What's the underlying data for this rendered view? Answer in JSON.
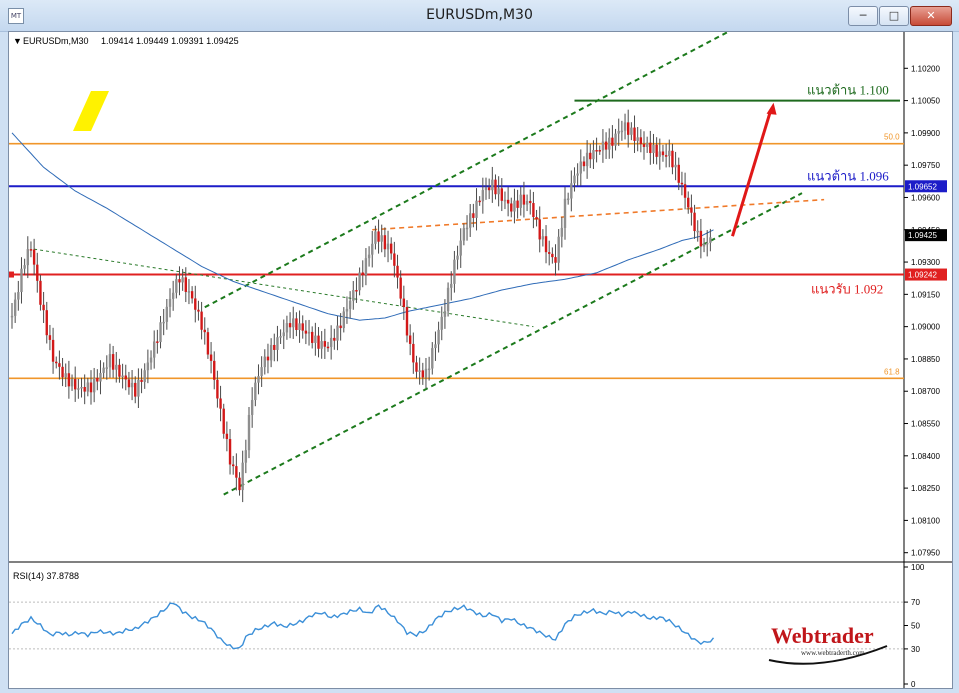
{
  "window": {
    "title": "EURUSDm,M30",
    "app_icon": "chart-window-icon",
    "buttons": {
      "minimize_icon": "minimize-icon",
      "maximize_icon": "maximize-icon",
      "close_icon": "close-icon"
    }
  },
  "header": {
    "symbol": "EURUSDm,M30",
    "ohlc": "1.09414 1.09449 1.09391 1.09425"
  },
  "rsi_header": {
    "label": "RSI(14) 37.8788"
  },
  "watermark": {
    "brand": "Webtrader",
    "url": "www.webtraderth.com"
  },
  "chart_data": [
    {
      "type": "candlestick",
      "title": "EURUSDm,M30",
      "ylim": [
        1.0793,
        1.1035
      ],
      "y_ticks": [
        "1.10200",
        "1.10050",
        "1.09900",
        "1.09750",
        "1.09600",
        "1.09450",
        "1.09300",
        "1.09150",
        "1.09000",
        "1.08850",
        "1.08700",
        "1.08550",
        "1.08400",
        "1.08250",
        "1.08100",
        "1.07950"
      ],
      "current_price": "1.09425",
      "close_path": [
        [
          0,
          1.0905
        ],
        [
          4,
          1.0931
        ],
        [
          6,
          1.0937
        ],
        [
          9,
          1.0912
        ],
        [
          13,
          1.0885
        ],
        [
          17,
          1.0876
        ],
        [
          21,
          1.0871
        ],
        [
          25,
          1.0872
        ],
        [
          28,
          1.0878
        ],
        [
          31,
          1.0885
        ],
        [
          33,
          1.088
        ],
        [
          36,
          1.0875
        ],
        [
          39,
          1.087
        ],
        [
          42,
          1.0879
        ],
        [
          45,
          1.0891
        ],
        [
          48,
          1.0904
        ],
        [
          51,
          1.0917
        ],
        [
          53,
          1.0923
        ],
        [
          55,
          1.0918
        ],
        [
          57,
          1.0913
        ],
        [
          60,
          1.0901
        ],
        [
          63,
          1.0883
        ],
        [
          66,
          1.086
        ],
        [
          69,
          1.0838
        ],
        [
          71,
          1.083
        ],
        [
          72,
          1.0825
        ],
        [
          74,
          1.0845
        ],
        [
          76,
          1.0868
        ],
        [
          79,
          1.0882
        ],
        [
          82,
          1.0889
        ],
        [
          85,
          1.0896
        ],
        [
          88,
          1.0902
        ],
        [
          91,
          1.09
        ],
        [
          94,
          1.0896
        ],
        [
          97,
          1.0892
        ],
        [
          100,
          1.0891
        ],
        [
          103,
          1.0898
        ],
        [
          106,
          1.0909
        ],
        [
          109,
          1.0919
        ],
        [
          112,
          1.093
        ],
        [
          115,
          1.0943
        ],
        [
          117,
          1.094
        ],
        [
          120,
          1.0935
        ],
        [
          123,
          1.0915
        ],
        [
          126,
          1.089
        ],
        [
          128,
          1.0879
        ],
        [
          131,
          1.0878
        ],
        [
          134,
          1.0893
        ],
        [
          137,
          1.0909
        ],
        [
          140,
          1.0929
        ],
        [
          143,
          1.0945
        ],
        [
          146,
          1.0953
        ],
        [
          149,
          1.0963
        ],
        [
          152,
          1.0966
        ],
        [
          155,
          1.096
        ],
        [
          158,
          1.0955
        ],
        [
          161,
          1.0959
        ],
        [
          164,
          1.0957
        ],
        [
          167,
          1.0943
        ],
        [
          170,
          1.0933
        ],
        [
          172,
          1.0931
        ],
        [
          175,
          1.0957
        ],
        [
          178,
          1.097
        ],
        [
          181,
          1.0977
        ],
        [
          184,
          1.0981
        ],
        [
          187,
          1.0984
        ],
        [
          190,
          1.0986
        ],
        [
          192,
          1.0991
        ],
        [
          194,
          1.0993
        ],
        [
          196,
          1.099
        ],
        [
          199,
          1.0985
        ],
        [
          202,
          1.0983
        ],
        [
          205,
          1.098
        ],
        [
          208,
          1.098
        ],
        [
          211,
          1.0969
        ],
        [
          214,
          1.0956
        ],
        [
          217,
          1.0942
        ],
        [
          219,
          1.0937
        ],
        [
          221,
          1.0942
        ]
      ],
      "series": [
        {
          "name": "MA",
          "line_color": "#2f6bb7",
          "path": [
            [
              0,
              1.099
            ],
            [
              10,
              1.0974
            ],
            [
              20,
              1.0963
            ],
            [
              30,
              1.0955
            ],
            [
              40,
              1.0946
            ],
            [
              50,
              1.0937
            ],
            [
              60,
              1.0928
            ],
            [
              70,
              1.0921
            ],
            [
              80,
              1.0916
            ],
            [
              90,
              1.0911
            ],
            [
              100,
              1.0906
            ],
            [
              110,
              1.0903
            ],
            [
              118,
              1.0904
            ],
            [
              125,
              1.0907
            ],
            [
              135,
              1.091
            ],
            [
              145,
              1.0913
            ],
            [
              155,
              1.0917
            ],
            [
              165,
              1.092
            ],
            [
              175,
              1.0922
            ],
            [
              185,
              1.0925
            ],
            [
              195,
              1.0931
            ],
            [
              205,
              1.0936
            ],
            [
              212,
              1.094
            ],
            [
              218,
              1.0942
            ],
            [
              222,
              1.0945
            ]
          ]
        }
      ],
      "levels": [
        {
          "name": "support",
          "label": "แนวรับ 1.092",
          "price": 1.09242,
          "price_tag": "1.09242",
          "color": "#e02020"
        },
        {
          "name": "resistance-1096",
          "label": "แนวต้าน 1.096",
          "price": 1.09652,
          "price_tag": "1.09652",
          "color": "#1c1cc8"
        },
        {
          "name": "resistance-1100",
          "label": "แนวต้าน 1.100",
          "price": 1.1005,
          "color": "#1e6a1e"
        }
      ],
      "fibo": [
        {
          "label": "50.0",
          "price": 1.0985,
          "color": "#f0962a"
        },
        {
          "label": "61.8",
          "price": 1.0876,
          "color": "#f0962a"
        }
      ],
      "channel": {
        "lower": [
          [
            67,
            1.0822
          ],
          [
            250,
            1.0962
          ]
        ],
        "upper": [
          [
            61,
            1.0909
          ],
          [
            250,
            1.1055
          ]
        ],
        "color": "#1c7a1c"
      }
    },
    {
      "type": "line",
      "title": "RSI(14) 37.8788",
      "ylim": [
        0,
        100
      ],
      "y_ticks": [
        "100",
        "70",
        "50",
        "30",
        "0"
      ],
      "series": [
        {
          "name": "RSI(14)",
          "line_color": "#3b8fd8",
          "path": [
            [
              0,
              43
            ],
            [
              3,
              51
            ],
            [
              6,
              56
            ],
            [
              9,
              50
            ],
            [
              12,
              42
            ],
            [
              15,
              44
            ],
            [
              18,
              42
            ],
            [
              21,
              44
            ],
            [
              24,
              42
            ],
            [
              27,
              45
            ],
            [
              30,
              44
            ],
            [
              33,
              43
            ],
            [
              36,
              46
            ],
            [
              39,
              47
            ],
            [
              42,
              52
            ],
            [
              45,
              57
            ],
            [
              48,
              63
            ],
            [
              51,
              70
            ],
            [
              54,
              62
            ],
            [
              57,
              57
            ],
            [
              60,
              54
            ],
            [
              63,
              47
            ],
            [
              66,
              38
            ],
            [
              69,
              32
            ],
            [
              72,
              30
            ],
            [
              74,
              40
            ],
            [
              77,
              46
            ],
            [
              80,
              49
            ],
            [
              83,
              52
            ],
            [
              86,
              49
            ],
            [
              89,
              51
            ],
            [
              92,
              54
            ],
            [
              95,
              59
            ],
            [
              98,
              61
            ],
            [
              101,
              57
            ],
            [
              104,
              59
            ],
            [
              107,
              62
            ],
            [
              110,
              64
            ],
            [
              113,
              60
            ],
            [
              116,
              67
            ],
            [
              119,
              61
            ],
            [
              122,
              54
            ],
            [
              125,
              44
            ],
            [
              128,
              42
            ],
            [
              131,
              46
            ],
            [
              134,
              55
            ],
            [
              137,
              61
            ],
            [
              140,
              64
            ],
            [
              143,
              66
            ],
            [
              146,
              62
            ],
            [
              149,
              58
            ],
            [
              152,
              60
            ],
            [
              155,
              54
            ],
            [
              158,
              56
            ],
            [
              161,
              51
            ],
            [
              164,
              48
            ],
            [
              167,
              44
            ],
            [
              170,
              40
            ],
            [
              172,
              38
            ],
            [
              175,
              51
            ],
            [
              178,
              58
            ],
            [
              181,
              61
            ],
            [
              184,
              63
            ],
            [
              187,
              60
            ],
            [
              190,
              62
            ],
            [
              193,
              59
            ],
            [
              196,
              62
            ],
            [
              199,
              59
            ],
            [
              202,
              56
            ],
            [
              205,
              57
            ],
            [
              208,
              54
            ],
            [
              211,
              48
            ],
            [
              214,
              42
            ],
            [
              217,
              36
            ],
            [
              219,
              35
            ],
            [
              222,
              38
            ]
          ]
        }
      ]
    }
  ]
}
